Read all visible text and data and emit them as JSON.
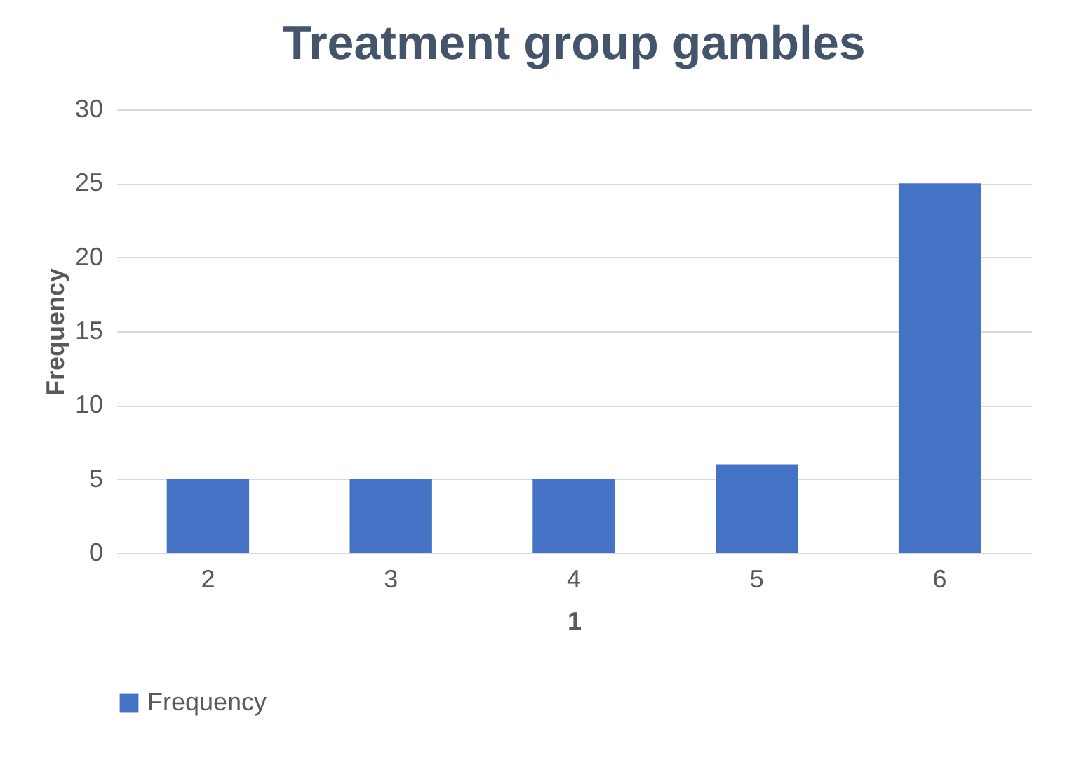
{
  "chart_data": {
    "type": "bar",
    "title": "Treatment group gambles",
    "xlabel": "1",
    "ylabel": "Frequency",
    "categories": [
      "2",
      "3",
      "4",
      "5",
      "6"
    ],
    "series": [
      {
        "name": "Frequency",
        "color": "#4472c4",
        "values": [
          5,
          5,
          5,
          6,
          25
        ]
      }
    ],
    "ylim": [
      0,
      30
    ],
    "yticks": [
      0,
      5,
      10,
      15,
      20,
      25,
      30
    ],
    "grid": "y",
    "legend": "bottom"
  }
}
